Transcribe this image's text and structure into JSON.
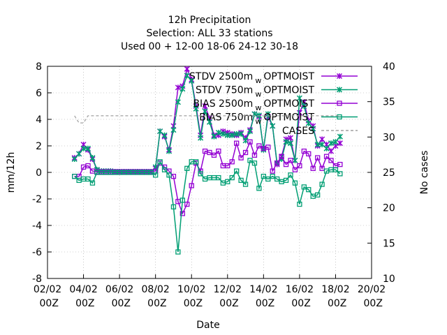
{
  "chart_data": {
    "type": "line",
    "title": [
      "12h Precipitation",
      "Selection: ALL      33 stations",
      "Used  00 + 12-00 18-06 24-12 30-18"
    ],
    "xlabel": "Date",
    "ylabel": "mm/12h",
    "y2label": "No cases",
    "x": [
      "03/02 12Z",
      "03/02 18Z",
      "04/02 00Z",
      "04/02 06Z",
      "04/02 12Z",
      "04/02 18Z",
      "05/02 00Z",
      "05/02 06Z",
      "05/02 12Z",
      "05/02 18Z",
      "06/02 00Z",
      "06/02 06Z",
      "06/02 12Z",
      "06/02 18Z",
      "07/02 00Z",
      "07/02 06Z",
      "07/02 12Z",
      "07/02 18Z",
      "08/02 00Z",
      "08/02 06Z",
      "08/02 12Z",
      "08/02 18Z",
      "09/02 00Z",
      "09/02 06Z",
      "09/02 12Z",
      "09/02 18Z",
      "10/02 00Z",
      "10/02 06Z",
      "10/02 12Z",
      "10/02 18Z",
      "11/02 00Z",
      "11/02 06Z",
      "11/02 12Z",
      "11/02 18Z",
      "12/02 00Z",
      "12/02 06Z",
      "12/02 12Z",
      "12/02 18Z",
      "13/02 00Z",
      "13/02 06Z",
      "13/02 12Z",
      "13/02 18Z",
      "14/02 00Z",
      "14/02 06Z",
      "14/02 12Z",
      "14/02 18Z",
      "15/02 00Z",
      "15/02 06Z",
      "15/02 12Z",
      "15/02 18Z",
      "16/02 00Z",
      "16/02 06Z",
      "16/02 12Z",
      "16/02 18Z",
      "17/02 00Z",
      "17/02 06Z",
      "17/02 12Z",
      "17/02 18Z",
      "18/02 00Z",
      "18/02 06Z"
    ],
    "xlim": [
      "02/02 00Z",
      "20/02 00Z"
    ],
    "xticks": [
      "02/02 00Z",
      "04/02 00Z",
      "06/02 00Z",
      "08/02 00Z",
      "10/02 00Z",
      "12/02 00Z",
      "14/02 00Z",
      "16/02 00Z",
      "18/02 00Z",
      "20/02 00Z"
    ],
    "ylim": [
      -8,
      8
    ],
    "yticks": [
      -8,
      -6,
      -4,
      -2,
      0,
      2,
      4,
      6,
      8
    ],
    "y2lim": [
      10,
      40
    ],
    "y2ticks": [
      10,
      15,
      20,
      25,
      30,
      35,
      40
    ],
    "grid": true,
    "legend": "top-right",
    "series": [
      {
        "name": "STDV 2500m",
        "name_sub": "w",
        "name_suffix": "OPTMOIST",
        "color": "#9400d3",
        "marker": "cross",
        "values": [
          1.1,
          1.4,
          2.1,
          1.7,
          1.0,
          0.2,
          0.1,
          0.1,
          0.1,
          0.05,
          0.05,
          0.05,
          0.05,
          0.05,
          0.05,
          0.05,
          0.05,
          0.05,
          0.3,
          3.1,
          2.7,
          1.7,
          3.5,
          6.4,
          6.5,
          7.8,
          7.0,
          5.0,
          2.8,
          5.0,
          4.1,
          2.8,
          2.8,
          3.1,
          3.0,
          2.9,
          2.8,
          3.0,
          2.6,
          3.2,
          4.4,
          4.2,
          1.8,
          4.2,
          3.5,
          0.6,
          1.2,
          2.5,
          2.6,
          0.9,
          4.5,
          5.3,
          3.9,
          3.5,
          2.0,
          2.5,
          2.1,
          1.6,
          2.0,
          2.2
        ]
      },
      {
        "name": "STDV 750m",
        "name_sub": "w",
        "name_suffix": "OPTMOIST",
        "color": "#009e73",
        "marker": "cross",
        "values": [
          1.0,
          1.4,
          1.8,
          1.8,
          1.1,
          0.2,
          0.1,
          0.1,
          0.1,
          0.05,
          0.05,
          0.05,
          0.05,
          0.05,
          0.05,
          0.05,
          0.05,
          0.05,
          0.4,
          3.1,
          2.8,
          1.6,
          3.2,
          5.3,
          6.3,
          7.3,
          6.9,
          4.8,
          2.6,
          4.6,
          3.8,
          2.7,
          3.0,
          2.9,
          2.8,
          2.8,
          2.9,
          2.9,
          2.4,
          3.1,
          4.4,
          4.3,
          1.7,
          4.4,
          3.5,
          0.7,
          1.0,
          2.3,
          2.2,
          0.9,
          5.6,
          5.0,
          3.7,
          3.3,
          2.1,
          2.1,
          1.8,
          2.2,
          2.3,
          2.7
        ]
      },
      {
        "name": "BIAS 2500m",
        "name_sub": "w",
        "name_suffix": "OPTMOIST",
        "color": "#9400d3",
        "marker": "square",
        "values": [
          -0.3,
          -0.3,
          0.4,
          0.5,
          0.1,
          0.05,
          0.05,
          0.05,
          0.05,
          0.05,
          0.05,
          0.05,
          0.05,
          0.05,
          0.05,
          0.05,
          0.05,
          0.05,
          0.1,
          0.7,
          0.4,
          0.1,
          -0.3,
          -2.2,
          -3.1,
          -2.4,
          -1.0,
          0.7,
          0.1,
          1.6,
          1.5,
          1.3,
          1.6,
          0.5,
          0.5,
          0.8,
          2.2,
          1.1,
          1.5,
          2.3,
          1.3,
          2.0,
          1.8,
          1.9,
          0.1,
          0.7,
          1.2,
          0.6,
          0.9,
          0.2,
          0.5,
          1.6,
          1.4,
          0.3,
          1.1,
          0.3,
          1.2,
          0.9,
          0.5,
          0.6
        ]
      },
      {
        "name": "BIAS 750m",
        "name_sub": "w",
        "name_suffix": "OPTMOIST",
        "color": "#009e73",
        "marker": "square",
        "values": [
          -0.3,
          -0.6,
          -0.5,
          -0.5,
          -0.8,
          0,
          0,
          0,
          0,
          0,
          0,
          0,
          0,
          0,
          0,
          0,
          0,
          0,
          -0.2,
          0.8,
          0.2,
          -0.2,
          -2.6,
          -6.0,
          -2.1,
          0.3,
          0.8,
          0.8,
          -0.1,
          -0.5,
          -0.4,
          -0.4,
          -0.4,
          -0.8,
          -0.7,
          -0.4,
          0.1,
          -0.6,
          -0.9,
          0.9,
          0.7,
          -1.2,
          -0.3,
          -0.5,
          -0.3,
          -0.5,
          -0.7,
          -0.6,
          -0.2,
          -0.8,
          -2.4,
          -1.1,
          -1.3,
          -1.8,
          -1.7,
          -0.9,
          0.1,
          0.2,
          0.2,
          -0.1
        ]
      },
      {
        "name": "CASES",
        "color": "#a0a0a0",
        "marker": "none",
        "dashed": true,
        "axis": "y2",
        "values": [
          33,
          32,
          32,
          33,
          33,
          33,
          33,
          33,
          33,
          33,
          33,
          33,
          33,
          33,
          33,
          33,
          33,
          33,
          33,
          33,
          33,
          33,
          33,
          33,
          33,
          33,
          33,
          33,
          33,
          33,
          33,
          33,
          33,
          33,
          33,
          33,
          33,
          33,
          33,
          33,
          33,
          33,
          33,
          33,
          33,
          33,
          33,
          33,
          33,
          33,
          33,
          33,
          33,
          33,
          33,
          33,
          33,
          33,
          33,
          33
        ]
      }
    ]
  }
}
